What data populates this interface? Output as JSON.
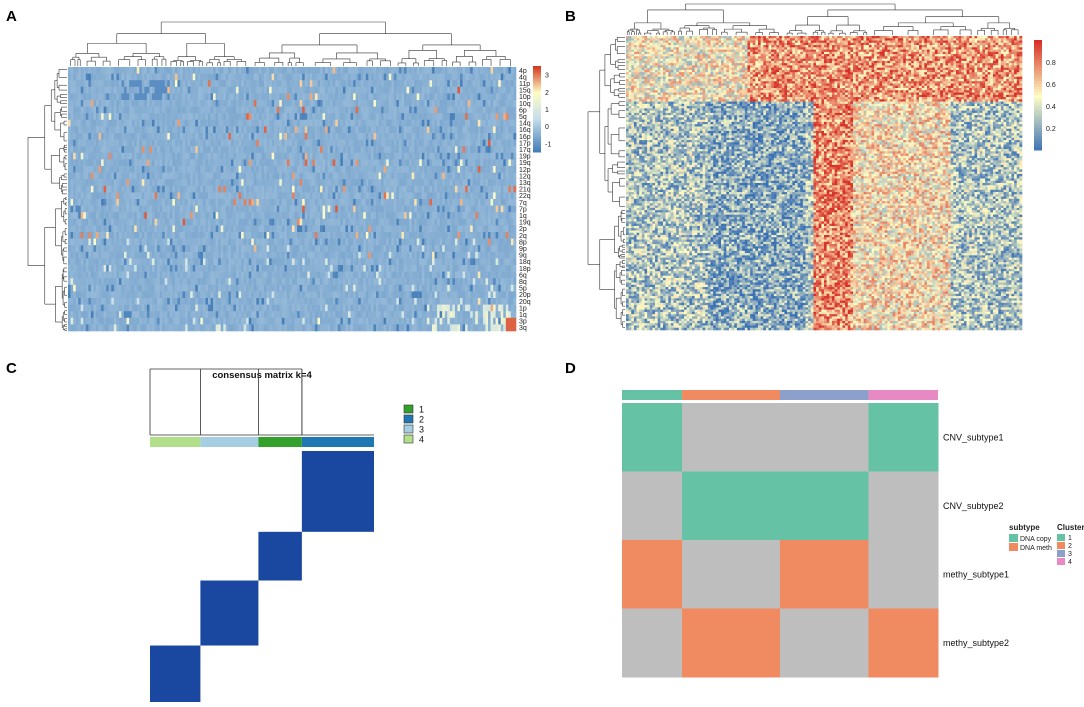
{
  "panels": [
    "A",
    "B",
    "C",
    "D"
  ],
  "chart_data": [
    {
      "panel": "A",
      "type": "heatmap",
      "title": "",
      "row_labels": [
        "4p",
        "4q",
        "11p",
        "15q",
        "10p",
        "10q",
        "6p",
        "5q",
        "14q",
        "16q",
        "16p",
        "17p",
        "17q",
        "19p",
        "19q",
        "12p",
        "12q",
        "13q",
        "21q",
        "22q",
        "7q",
        "7p",
        "1q",
        "19q",
        "2p",
        "2q",
        "8p",
        "9p",
        "9q",
        "18q",
        "18p",
        "6q",
        "8q",
        "5p",
        "20p",
        "20q",
        "1p",
        "1q",
        "3p",
        "3q"
      ],
      "n_columns": 176,
      "colorbar": {
        "min": -1.5,
        "max": 3.5,
        "ticks": [
          3,
          2,
          1,
          0,
          -1
        ]
      },
      "palette": {
        "low": "#3f79b6",
        "mid": "#c6deec",
        "mid2": "#fffdc5",
        "high": "#d43d25"
      },
      "dominant_value": -0.4,
      "notes": "Copy-number heatmap; mostly light blue values near -0.4 with sparse yellow/red gains"
    },
    {
      "panel": "B",
      "type": "heatmap",
      "title": "",
      "n_rows": 130,
      "n_columns": 150,
      "colorbar": {
        "min": 0,
        "max": 1,
        "ticks": [
          0.8,
          0.6,
          0.4,
          0.2
        ]
      },
      "palette": {
        "low": "#3a70b6",
        "mid": "#fffdc5",
        "high": "#d73027"
      },
      "notes": "Methylation beta-value heatmap; top rows and central column block high (red), left block low (blue)"
    },
    {
      "panel": "C",
      "type": "heatmap",
      "title": "consensus matrix k=4",
      "legend": [
        {
          "label": "1",
          "color": "#33a02c"
        },
        {
          "label": "2",
          "color": "#1f78b4"
        },
        {
          "label": "3",
          "color": "#a6cee3"
        },
        {
          "label": "4",
          "color": "#b2df8a"
        }
      ],
      "cluster_bar_order": [
        "4",
        "3",
        "1",
        "2"
      ],
      "cluster_sizes": [
        0.225,
        0.259,
        0.194,
        0.322
      ],
      "block_color": "#1a47a0",
      "values": "block diagonal consensus = 1 within each cluster, 0 elsewhere"
    },
    {
      "panel": "D",
      "type": "heatmap",
      "row_labels": [
        "CNV_subtype1",
        "CNV_subtype2",
        "methy_subtype1",
        "methy_subtype2"
      ],
      "columns": [
        "1",
        "2",
        "3",
        "4"
      ],
      "column_widths": [
        0.19,
        0.31,
        0.28,
        0.22
      ],
      "cells": [
        [
          "DNA copy",
          null,
          null,
          "DNA copy"
        ],
        [
          null,
          "DNA copy",
          "DNA copy",
          null
        ],
        [
          "DNA meth",
          null,
          "DNA meth",
          null
        ],
        [
          null,
          "DNA meth",
          null,
          "DNA meth"
        ]
      ],
      "empty_color": "#bebebe",
      "legend_subtype": {
        "title": "subtype",
        "items": [
          {
            "label": "DNA copy",
            "color": "#66c2a5"
          },
          {
            "label": "DNA meth",
            "color": "#f08b61"
          }
        ]
      },
      "legend_cluster": {
        "title": "Cluster",
        "items": [
          {
            "label": "1",
            "color": "#66c2a5"
          },
          {
            "label": "2",
            "color": "#f08b61"
          },
          {
            "label": "3",
            "color": "#8da0cb"
          },
          {
            "label": "4",
            "color": "#e78ac3"
          }
        ]
      }
    }
  ]
}
